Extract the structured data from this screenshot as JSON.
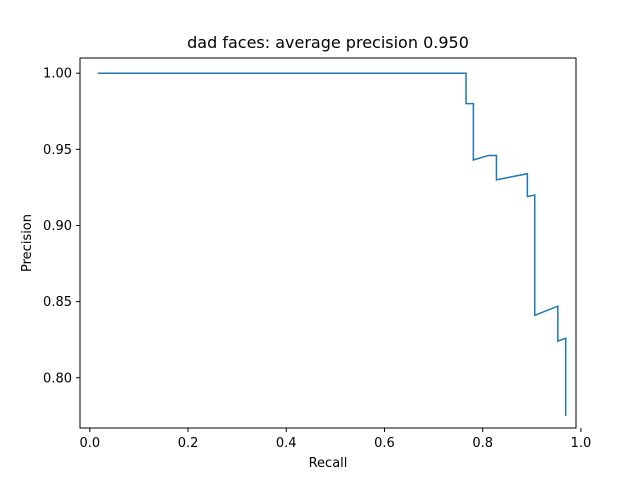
{
  "chart_data": {
    "type": "line",
    "title": "dad faces: average precision 0.950",
    "xlabel": "Recall",
    "ylabel": "Precision",
    "xlim": [
      -0.02,
      0.99
    ],
    "ylim": [
      0.767,
      1.01
    ],
    "xticks": [
      0.0,
      0.2,
      0.4,
      0.6,
      0.8,
      1.0
    ],
    "xtick_labels": [
      "0.0",
      "0.2",
      "0.4",
      "0.6",
      "0.8",
      "1.0"
    ],
    "yticks": [
      0.8,
      0.85,
      0.9,
      0.95,
      1.0
    ],
    "ytick_labels": [
      "0.80",
      "0.85",
      "0.90",
      "0.95",
      "1.00"
    ],
    "grid": false,
    "series": [
      {
        "color": "#1f77b4",
        "x": [
          0.016,
          0.766,
          0.766,
          0.781,
          0.781,
          0.812,
          0.828,
          0.828,
          0.891,
          0.891,
          0.906,
          0.906,
          0.953,
          0.953,
          0.969,
          0.969
        ],
        "y": [
          1.0,
          1.0,
          0.98,
          0.98,
          0.943,
          0.946,
          0.946,
          0.93,
          0.934,
          0.919,
          0.92,
          0.841,
          0.847,
          0.824,
          0.826,
          0.775
        ]
      }
    ]
  }
}
